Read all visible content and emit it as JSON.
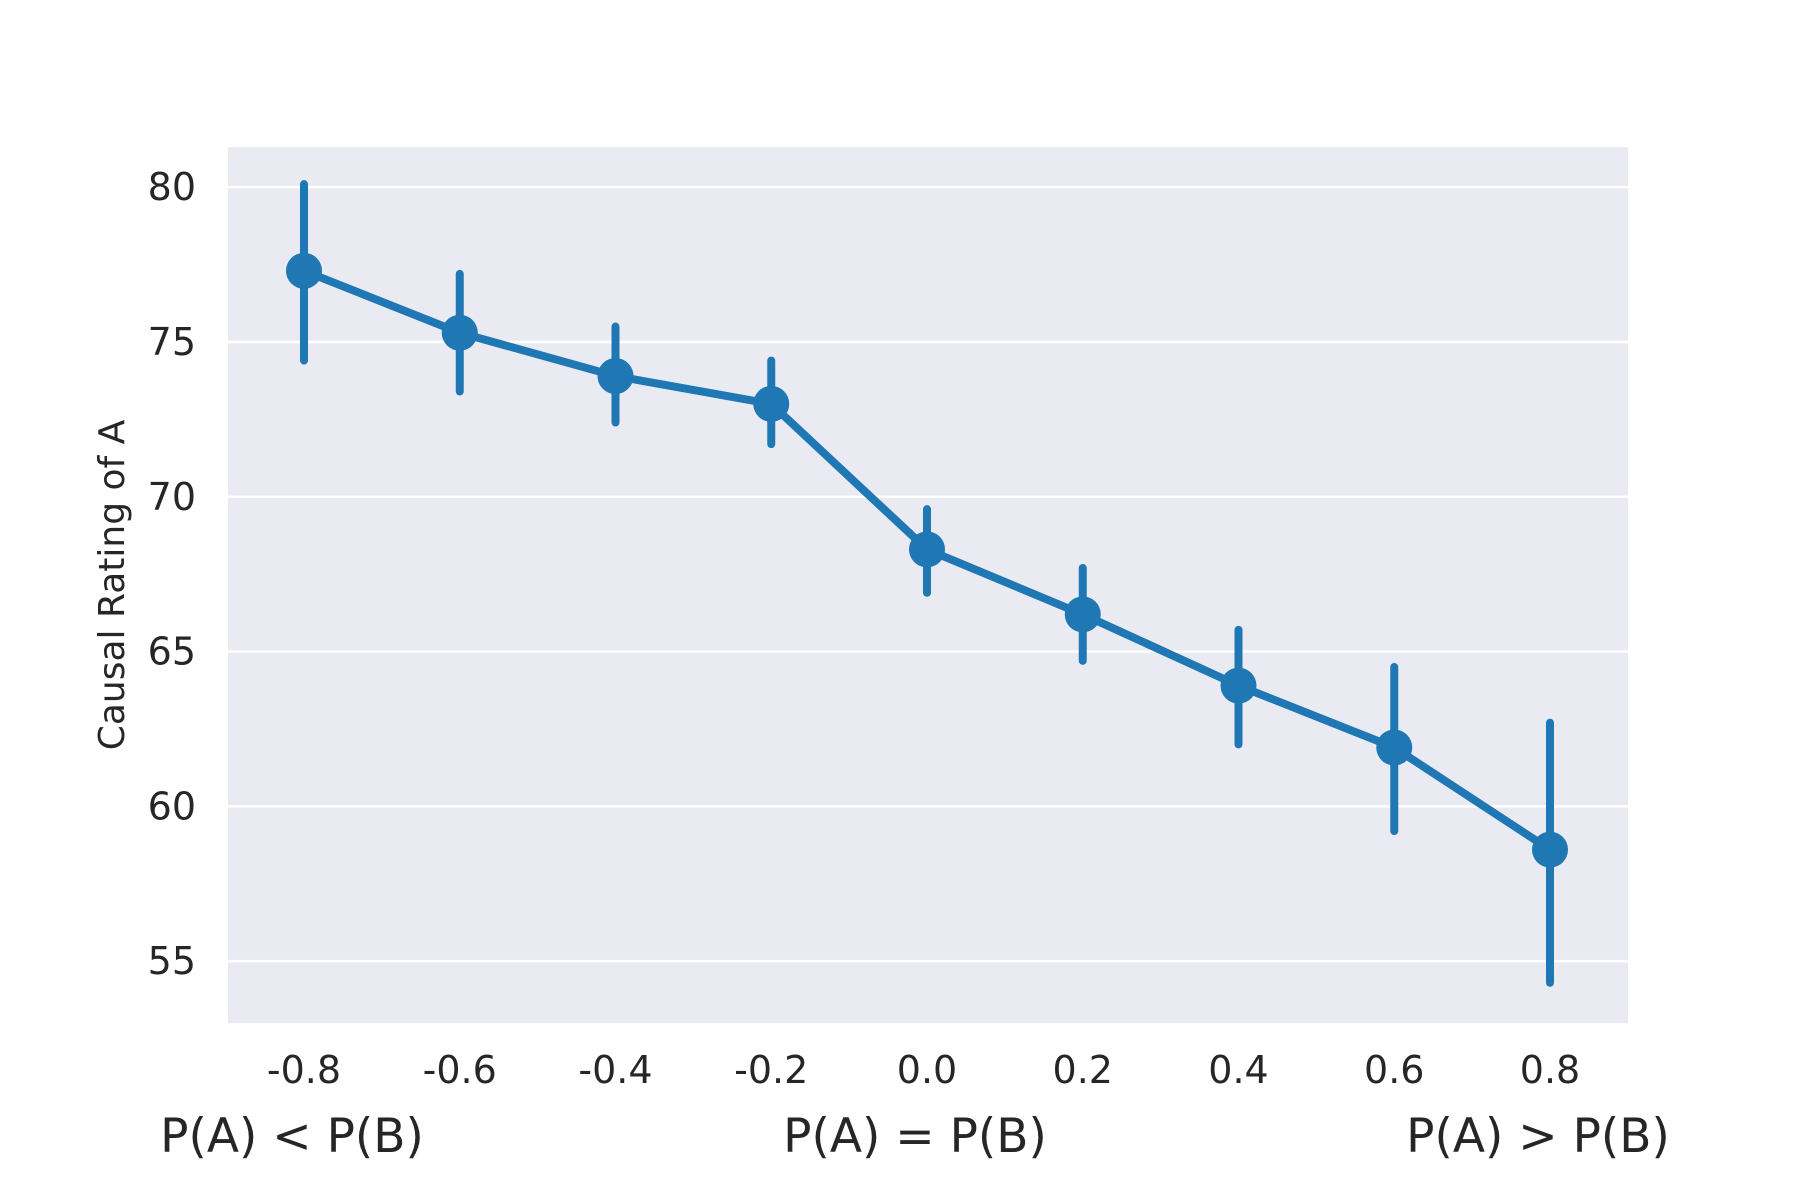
{
  "chart_data": {
    "type": "line",
    "title": "",
    "xlabel": "",
    "ylabel": "Causal Rating of A",
    "x": [
      -0.8,
      -0.6,
      -0.4,
      -0.2,
      0.0,
      0.2,
      0.4,
      0.6,
      0.8
    ],
    "x_tick_labels": [
      "-0.8",
      "-0.6",
      "-0.4",
      "-0.2",
      "0.0",
      "0.2",
      "0.4",
      "0.6",
      "0.8"
    ],
    "y_ticks": [
      55,
      60,
      65,
      70,
      75,
      80
    ],
    "y_tick_labels": [
      "55",
      "60",
      "65",
      "70",
      "75",
      "80"
    ],
    "ylim": [
      53.0,
      81.3
    ],
    "grid": true,
    "legend": "none",
    "series": [
      {
        "values": [
          77.3,
          75.3,
          73.9,
          73.0,
          68.3,
          66.2,
          63.9,
          61.9,
          58.6
        ],
        "error_low": [
          74.4,
          73.4,
          72.4,
          71.7,
          66.9,
          64.7,
          62.0,
          59.2,
          54.3
        ],
        "error_high": [
          80.1,
          77.2,
          75.5,
          74.4,
          69.6,
          67.7,
          65.7,
          64.5,
          62.7
        ],
        "color": "#1f77b4"
      }
    ],
    "annotations": [
      {
        "text": "P(A) < P(B)",
        "at_x": -0.8
      },
      {
        "text": "P(A) = P(B)",
        "at_x": 0.0
      },
      {
        "text": "P(A) > P(B)",
        "at_x": 0.8
      }
    ],
    "background_color": "#eaeaf2",
    "grid_color": "#ffffff"
  }
}
